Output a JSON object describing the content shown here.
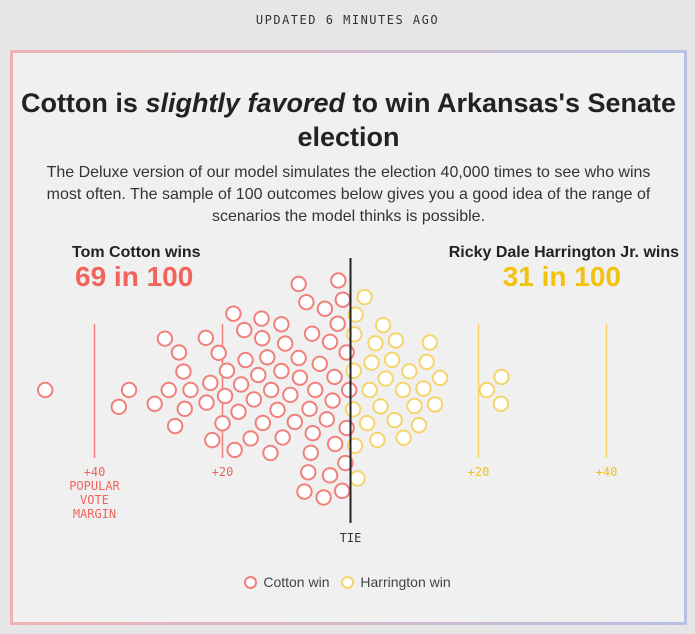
{
  "updated": "UPDATED 6 MINUTES AGO",
  "headline": {
    "part1": "Cotton is ",
    "emph": "slightly favored",
    "part2": " to win Arkansas's Senate election"
  },
  "dek": "The Deluxe version of our model simulates the election 40,000 times to see who wins most often. The sample of 100 outcomes below gives you a good idea of the range of scenarios the model thinks is possible.",
  "left_candidate": {
    "label": "Tom Cotton wins",
    "odds": "69 in 100"
  },
  "right_candidate": {
    "label": "Ricky Dale Harrington Jr. wins",
    "odds": "31 in 100"
  },
  "legend": {
    "cotton": "Cotton win",
    "harrington": "Harrington win"
  },
  "colors": {
    "cotton": "#f0807a",
    "harrington": "#f5d56b",
    "cotton_text": "#f0645c",
    "harrington_text": "#f2c20f"
  },
  "chart_data": {
    "type": "scatter",
    "x_axis": "popular vote margin",
    "x_ticks": [
      {
        "value": -40,
        "label": "+40",
        "sublabel": "POPULAR VOTE MARGIN"
      },
      {
        "value": -20,
        "label": "+20",
        "sublabel": ""
      },
      {
        "value": 0,
        "label": "TIE",
        "sublabel": ""
      },
      {
        "value": 20,
        "label": "+20",
        "sublabel": ""
      },
      {
        "value": 40,
        "label": "+40",
        "sublabel": ""
      }
    ],
    "xlim": [
      -48,
      25
    ],
    "series": [
      {
        "name": "Cotton win",
        "key": "cotton",
        "x": [
          -47.7,
          -36.2,
          -34.6,
          -30.6,
          -29.0,
          -28.4,
          -27.4,
          -26.8,
          -26.1,
          -25.9,
          -25.0,
          -22.6,
          -22.5,
          -21.9,
          -21.6,
          -20.6,
          -20.0,
          -19.6,
          -19.3,
          -18.3,
          -18.1,
          -17.5,
          -17.1,
          -16.6,
          -16.4,
          -15.6,
          -15.1,
          -14.4,
          -13.9,
          -13.8,
          -13.7,
          -13.0,
          -12.5,
          -12.4,
          -11.4,
          -10.8,
          -10.8,
          -10.6,
          -10.2,
          -9.4,
          -8.7,
          -8.1,
          -8.1,
          -7.9,
          -7.2,
          -6.9,
          -6.6,
          -6.4,
          -6.2,
          -6.0,
          -5.9,
          -5.5,
          -4.8,
          -4.2,
          -4.0,
          -3.7,
          -3.2,
          -3.2,
          -2.8,
          -2.5,
          -2.4,
          -2.0,
          -1.9,
          -1.3,
          -1.2,
          -0.8,
          -0.6,
          -0.6,
          -0.2
        ]
      },
      {
        "name": "Harrington win",
        "key": "harrington",
        "x": [
          0.4,
          0.5,
          0.6,
          0.7,
          0.8,
          1.1,
          2.2,
          2.6,
          3.0,
          3.3,
          3.9,
          4.2,
          4.7,
          5.1,
          5.5,
          6.5,
          6.9,
          7.1,
          8.2,
          8.3,
          9.2,
          10.0,
          10.7,
          11.4,
          11.9,
          12.4,
          13.2,
          14.0,
          21.3,
          23.5,
          23.6
        ]
      }
    ]
  }
}
